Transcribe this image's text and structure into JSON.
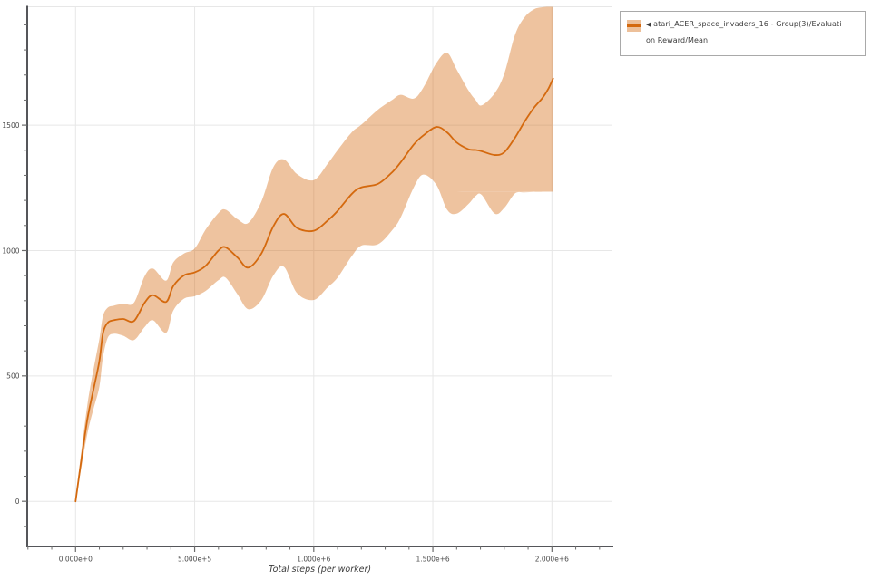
{
  "legend": {
    "collapse_icon": "◀",
    "label_line1": "atari_ACER_space_invaders_16 - Group(3)/Evaluati",
    "label_line2": "on Reward/Mean",
    "full_label": "atari_ACER_space_invaders_16 - Group(3)/Evaluation Reward/Mean",
    "swatch_color": "#d4690e"
  },
  "chart_data": {
    "type": "line",
    "title": "",
    "xlabel": "Total steps (per worker)",
    "ylabel": "",
    "grid": true,
    "legend_position": "top-right",
    "style": {
      "line_color": "#d4690e",
      "band_opacity": 0.4,
      "grid_color": "#e7e7e7",
      "spine_color": "#55565a",
      "tick_color": "#6b6b6b",
      "tick_label_color": "#4a4a4a"
    },
    "x_axis": {
      "min": -203000,
      "max": 2254000,
      "minor_tick_step": 100000,
      "major_ticks": [
        {
          "value": 0,
          "label": "0.000e+0"
        },
        {
          "value": 500000,
          "label": "5.000e+5"
        },
        {
          "value": 1000000,
          "label": "1.000e+6"
        },
        {
          "value": 1500000,
          "label": "1.500e+6"
        },
        {
          "value": 2000000,
          "label": "2.000e+6"
        }
      ]
    },
    "y_axis": {
      "min": -180,
      "max": 1972,
      "minor_tick_step": 100,
      "major_ticks": [
        {
          "value": 0,
          "label": "0"
        },
        {
          "value": 500,
          "label": "500"
        },
        {
          "value": 1000,
          "label": "1000"
        },
        {
          "value": 1500,
          "label": "1500"
        }
      ]
    },
    "series": [
      {
        "name": "atari_ACER_space_invaders_16 - Group(3)/Evaluation Reward/Mean",
        "color": "#d4690e",
        "points_format": [
          "step",
          "mean",
          "band_low",
          "band_high"
        ],
        "points": [
          [
            0,
            0,
            0,
            10
          ],
          [
            25000,
            170,
            138,
            205
          ],
          [
            50000,
            330,
            272,
            388
          ],
          [
            75000,
            445,
            368,
            525
          ],
          [
            100000,
            560,
            458,
            648
          ],
          [
            115000,
            670,
            575,
            738
          ],
          [
            135000,
            712,
            652,
            772
          ],
          [
            160000,
            722,
            668,
            780
          ],
          [
            200000,
            727,
            660,
            788
          ],
          [
            245000,
            719,
            643,
            792
          ],
          [
            290000,
            792,
            695,
            898
          ],
          [
            325000,
            822,
            722,
            928
          ],
          [
            380000,
            795,
            672,
            880
          ],
          [
            410000,
            858,
            760,
            952
          ],
          [
            455000,
            901,
            808,
            988
          ],
          [
            500000,
            913,
            818,
            1008
          ],
          [
            545000,
            938,
            838,
            1082
          ],
          [
            600000,
            1000,
            882,
            1150
          ],
          [
            630000,
            1013,
            892,
            1163
          ],
          [
            680000,
            972,
            825,
            1125
          ],
          [
            725000,
            932,
            766,
            1110
          ],
          [
            780000,
            988,
            802,
            1195
          ],
          [
            830000,
            1096,
            900,
            1332
          ],
          [
            875000,
            1146,
            935,
            1363
          ],
          [
            930000,
            1090,
            830,
            1305
          ],
          [
            1000000,
            1079,
            803,
            1281
          ],
          [
            1060000,
            1121,
            855,
            1348
          ],
          [
            1100000,
            1158,
            892,
            1400
          ],
          [
            1160000,
            1226,
            978,
            1472
          ],
          [
            1200000,
            1252,
            1020,
            1502
          ],
          [
            1270000,
            1266,
            1025,
            1562
          ],
          [
            1330000,
            1313,
            1082,
            1601
          ],
          [
            1365000,
            1352,
            1132,
            1621
          ],
          [
            1420000,
            1423,
            1252,
            1606
          ],
          [
            1460000,
            1459,
            1303,
            1650
          ],
          [
            1515000,
            1493,
            1262,
            1748
          ],
          [
            1560000,
            1471,
            1163,
            1788
          ],
          [
            1600000,
            1431,
            1147,
            1722
          ],
          [
            1650000,
            1404,
            1186,
            1638
          ],
          [
            1680000,
            1401,
            1218,
            1600
          ],
          [
            1705000,
            1396,
            1222,
            1579
          ],
          [
            1760000,
            1381,
            1147,
            1628
          ],
          [
            1800000,
            1392,
            1170,
            1705
          ],
          [
            1845000,
            1450,
            1228,
            1860
          ],
          [
            1885000,
            1514,
            1232,
            1930
          ],
          [
            1925000,
            1570,
            1234,
            1962
          ],
          [
            1960000,
            1608,
            1234,
            1970
          ],
          [
            1985000,
            1645,
            1234,
            1972
          ],
          [
            2005000,
            1686,
            1235,
            1972
          ]
        ]
      }
    ]
  }
}
